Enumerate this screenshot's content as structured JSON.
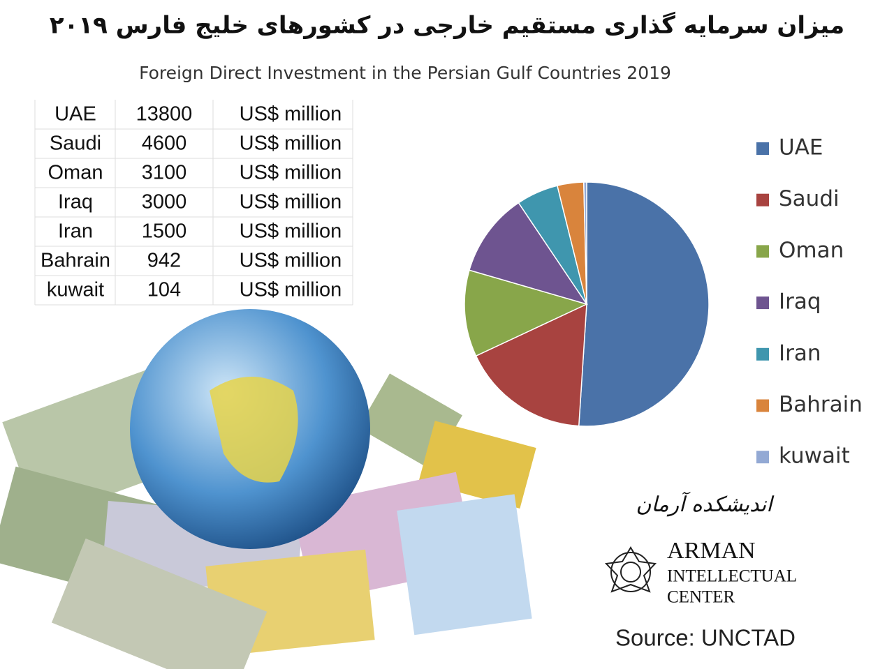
{
  "title_fa": "میزان سرمایه گذاری مستقیم خارجی در کشورهای خلیج فارس ۲۰۱۹",
  "logo": {
    "name_fa": "اندیشکده آرمان",
    "line1": "ARMAN",
    "line2": "INTELLECTUAL",
    "line3": "CENTER"
  },
  "source": "Source: UNCTAD",
  "table_unit": "US$ million",
  "chart_data": {
    "type": "pie",
    "title": "Foreign Direct Investment in the Persian Gulf Countries 2019",
    "categories": [
      "UAE",
      "Saudi",
      "Oman",
      "Iraq",
      "Iran",
      "Bahrain",
      "kuwait"
    ],
    "values": [
      13800,
      4600,
      3100,
      3000,
      1500,
      942,
      104
    ],
    "colors": [
      "#4a72a8",
      "#a84340",
      "#88a64a",
      "#6e5490",
      "#3f96ae",
      "#d9843c",
      "#93a9d4"
    ],
    "legend": "right"
  }
}
